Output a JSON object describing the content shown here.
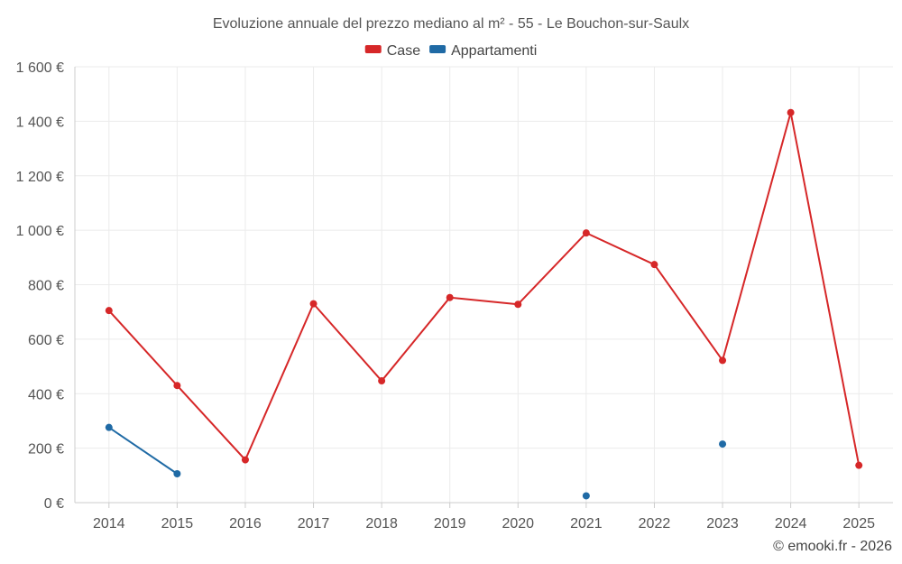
{
  "chart_data": {
    "type": "line",
    "title": "Evoluzione annuale del prezzo mediano al m² - 55 - Le Bouchon-sur-Saulx",
    "xlabel": "",
    "ylabel": "",
    "categories": [
      "2014",
      "2015",
      "2016",
      "2017",
      "2018",
      "2019",
      "2020",
      "2021",
      "2022",
      "2023",
      "2024",
      "2025"
    ],
    "ylim": [
      0,
      1600
    ],
    "yticks": [
      0,
      200,
      400,
      600,
      800,
      1000,
      1200,
      1400,
      1600
    ],
    "ytick_labels": [
      "0 €",
      "200 €",
      "400 €",
      "600 €",
      "800 €",
      "1 000 €",
      "1 200 €",
      "1 400 €",
      "1 600 €"
    ],
    "grid": true,
    "legend_position": "top-center",
    "series": [
      {
        "name": "Case",
        "color": "#d62728",
        "values": [
          705,
          430,
          157,
          730,
          447,
          753,
          728,
          990,
          874,
          522,
          1432,
          137
        ]
      },
      {
        "name": "Appartamenti",
        "color": "#1f6aa5",
        "values": [
          276,
          106,
          null,
          null,
          null,
          null,
          null,
          25,
          null,
          215,
          null,
          null
        ]
      }
    ],
    "credit": "© emooki.fr - 2026"
  }
}
